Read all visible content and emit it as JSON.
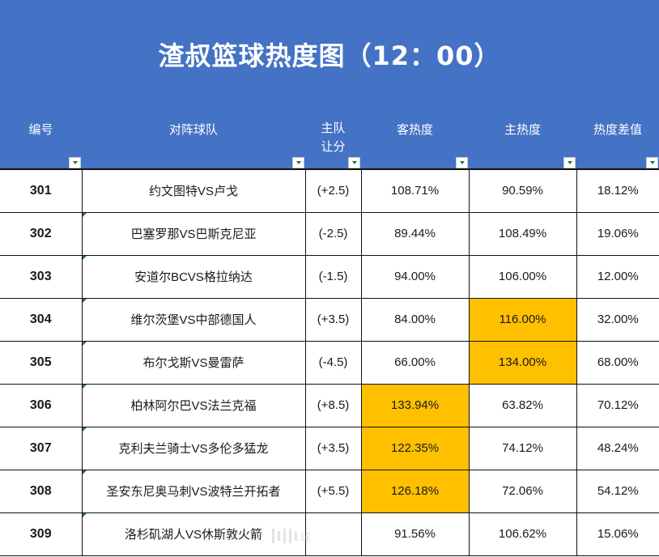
{
  "title": "渣叔篮球热度图（12：00）",
  "colors": {
    "header_bg": "#4472c4",
    "highlight": "#ffc000",
    "filter_arrow": "#217346"
  },
  "columns": [
    {
      "key": "id",
      "label": "编号"
    },
    {
      "key": "match",
      "label": "对阵球队"
    },
    {
      "key": "handicap",
      "label_line1": "主队",
      "label_line2": "让分"
    },
    {
      "key": "away_heat",
      "label": "客热度"
    },
    {
      "key": "home_heat",
      "label": "主热度"
    },
    {
      "key": "heat_diff",
      "label": "热度差值"
    }
  ],
  "rows": [
    {
      "id": "301",
      "match": "约文图特VS卢戈",
      "handicap": "(+2.5)",
      "away_heat": "108.71%",
      "home_heat": "90.59%",
      "heat_diff": "18.12%",
      "highlight": ""
    },
    {
      "id": "302",
      "match": "巴塞罗那VS巴斯克尼亚",
      "handicap": "(-2.5)",
      "away_heat": "89.44%",
      "home_heat": "108.49%",
      "heat_diff": "19.06%",
      "highlight": ""
    },
    {
      "id": "303",
      "match": "安道尔BCVS格拉纳达",
      "handicap": "(-1.5)",
      "away_heat": "94.00%",
      "home_heat": "106.00%",
      "heat_diff": "12.00%",
      "highlight": ""
    },
    {
      "id": "304",
      "match": "维尔茨堡VS中部德国人",
      "handicap": "(+3.5)",
      "away_heat": "84.00%",
      "home_heat": "116.00%",
      "heat_diff": "32.00%",
      "highlight": "home_heat"
    },
    {
      "id": "305",
      "match": "布尔戈斯VS曼雷萨",
      "handicap": "(-4.5)",
      "away_heat": "66.00%",
      "home_heat": "134.00%",
      "heat_diff": "68.00%",
      "highlight": "home_heat"
    },
    {
      "id": "306",
      "match": "柏林阿尔巴VS法兰克福",
      "handicap": "(+8.5)",
      "away_heat": "133.94%",
      "home_heat": "63.82%",
      "heat_diff": "70.12%",
      "highlight": "away_heat"
    },
    {
      "id": "307",
      "match": "克利夫兰骑士VS多伦多猛龙",
      "handicap": "(+3.5)",
      "away_heat": "122.35%",
      "home_heat": "74.12%",
      "heat_diff": "48.24%",
      "highlight": "away_heat"
    },
    {
      "id": "308",
      "match": "圣安东尼奥马刺VS波特兰开拓者",
      "handicap": "(+5.5)",
      "away_heat": "126.18%",
      "home_heat": "72.06%",
      "heat_diff": "54.12%",
      "highlight": "away_heat"
    },
    {
      "id": "309",
      "match": "洛杉矶湖人VS休斯敦火箭",
      "handicap": "",
      "away_heat": "91.56%",
      "home_heat": "106.62%",
      "heat_diff": "15.06%",
      "highlight": ""
    }
  ],
  "watermark": {
    "text": "球"
  }
}
